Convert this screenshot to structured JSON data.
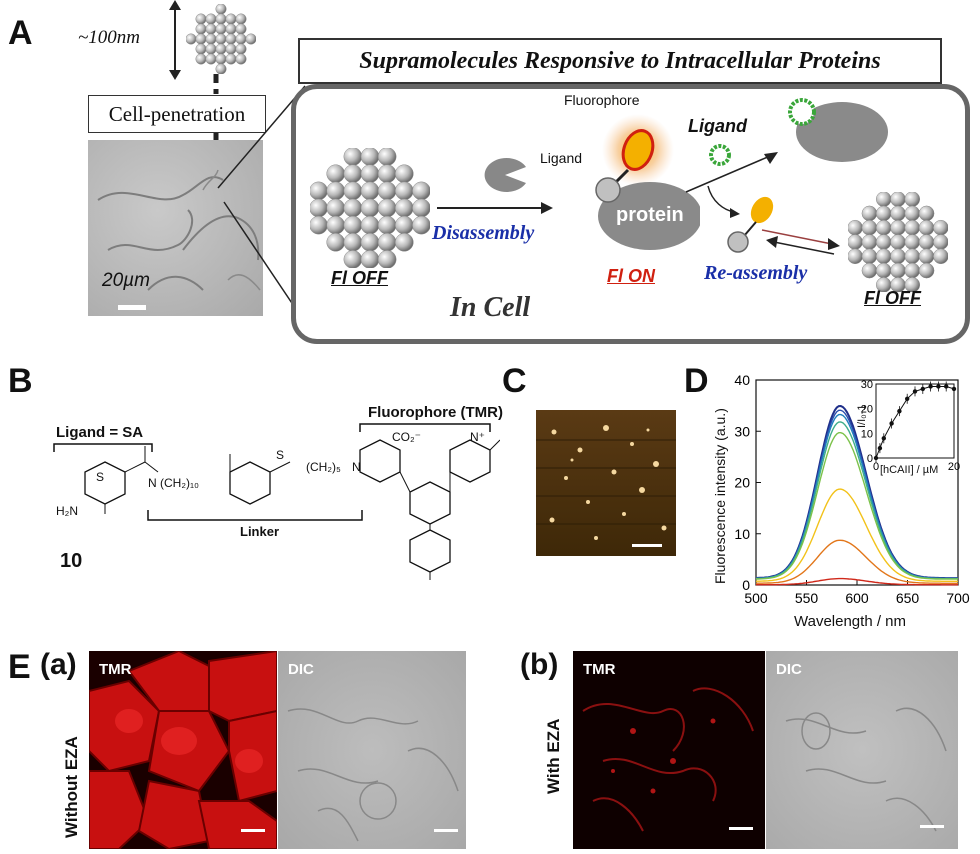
{
  "panels": {
    "a": "A",
    "b": "B",
    "c": "C",
    "d": "D",
    "e": "E"
  },
  "panelA": {
    "size_label": "~100nm",
    "cell_penetration": "Cell-penetration",
    "scale_label": "20µm",
    "title": "Supramolecules Responsive to Intracellular Proteins",
    "fluorophore": "Fluorophore",
    "ligand_small": "Ligand",
    "ligand_bold": "Ligand",
    "protein": "protein",
    "disassembly": "Disassembly",
    "reassembly": "Re-assembly",
    "fl_off_left": "Fl OFF",
    "fl_on": "Fl ON",
    "fl_off_right": "Fl OFF",
    "in_cell": "In Cell",
    "colors": {
      "fl_on": "#d02010",
      "blue_text": "#1a2fa8",
      "fluorophore_core": "#f6a800",
      "ligand_ring": "#3aa63a"
    }
  },
  "panelB": {
    "ligand": "Ligand = SA",
    "fluorophore": "Fluorophore (TMR)",
    "linker": "Linker",
    "compound": "10",
    "h2n": "H₂N",
    "chain1": "(CH₂)₁₀",
    "chain2": "(CH₂)₅",
    "n1": "N",
    "n2": "N",
    "co2": "CO₂⁻",
    "nplus": "N⁺",
    "s1": "S",
    "s2": "S"
  },
  "panelD": {
    "xlabel": "Wavelength / nm",
    "ylabel": "Fluorescence intensity (a.u.)",
    "inset_xlabel": "[hCAII] / µM",
    "inset_ylabel": "I/I₀-1"
  },
  "chart_data": [
    {
      "type": "line",
      "title": "",
      "xlabel": "Wavelength / nm",
      "ylabel": "Fluorescence intensity (a.u.)",
      "xlim": [
        500,
        700
      ],
      "ylim": [
        0,
        40
      ],
      "xticks": [
        500,
        550,
        600,
        650,
        700
      ],
      "yticks": [
        0,
        10,
        20,
        30,
        40
      ],
      "peak_x": 583,
      "series": [
        {
          "color": "#1f2f8a",
          "peak": 33.6
        },
        {
          "color": "#2a4fae",
          "peak": 32.8
        },
        {
          "color": "#1f7fbf",
          "peak": 32.0
        },
        {
          "color": "#3fae8a",
          "peak": 30.6
        },
        {
          "color": "#7cc24a",
          "peak": 28.6
        },
        {
          "color": "#f2c21a",
          "peak": 18.0
        },
        {
          "color": "#e2761a",
          "peak": 8.4
        },
        {
          "color": "#d0281a",
          "peak": 1.2
        }
      ]
    },
    {
      "type": "scatter",
      "title": "",
      "xlabel": "[hCAII] / µM",
      "ylabel": "I/I₀-1",
      "xlim": [
        0,
        20
      ],
      "ylim": [
        0,
        30
      ],
      "xticks": [
        0,
        20
      ],
      "yticks": [
        0,
        10,
        20,
        30
      ],
      "x": [
        0,
        1,
        2,
        4,
        6,
        8,
        10,
        12,
        14,
        16,
        18,
        20
      ],
      "y": [
        0,
        4,
        8,
        14,
        19,
        24,
        27,
        28,
        29,
        29,
        29,
        28
      ]
    }
  ],
  "panelE": {
    "a_label": "(a)",
    "b_label": "(b)",
    "without": "Without EZA",
    "with": "With EZA",
    "tmr1": "TMR",
    "dic1": "DIC",
    "tmr2": "TMR",
    "dic2": "DIC"
  }
}
